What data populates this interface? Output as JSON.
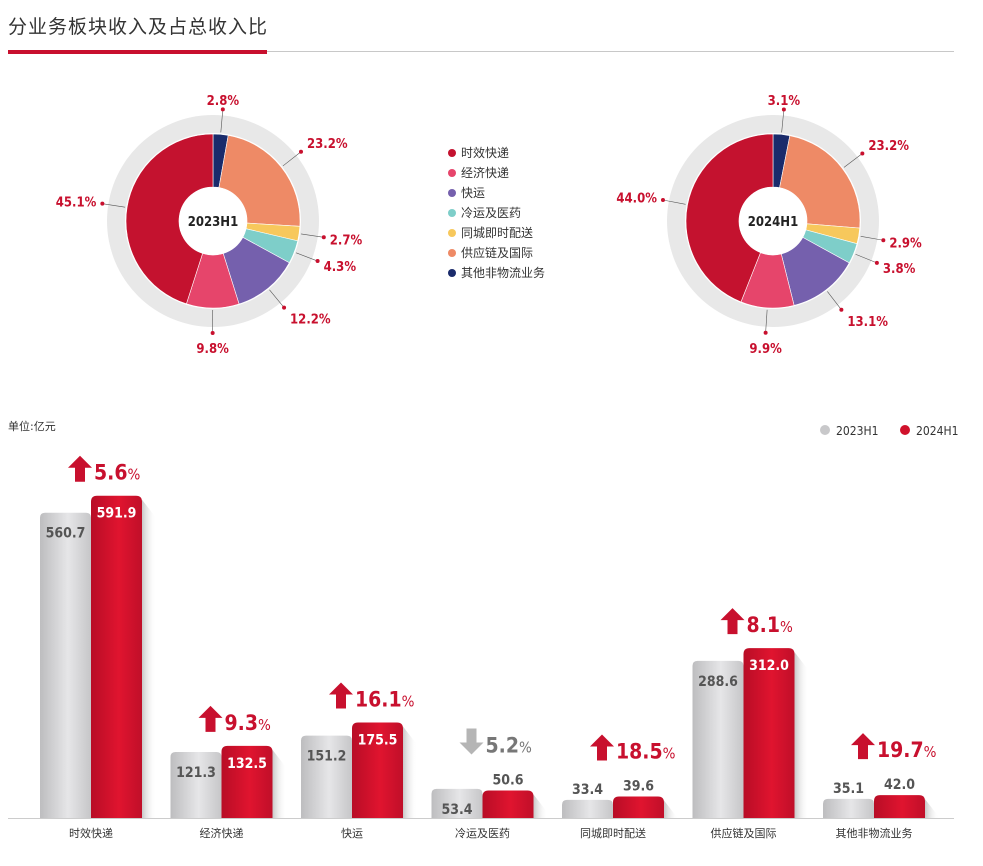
{
  "header": {
    "title": "分业务板块收入及占总收入比"
  },
  "colors": {
    "accent": "#c8102e",
    "ring": "#e6e6e6",
    "bar2023": "#d0d0d2",
    "bar2024": "#d0112b",
    "up": "#c8102e",
    "down": "#b5b5b5",
    "label": "#c8102e"
  },
  "legend": {
    "items": [
      {
        "label": "时效快递",
        "color": "#c4122f"
      },
      {
        "label": "经济快递",
        "color": "#e6456b"
      },
      {
        "label": "快运",
        "color": "#7560ad"
      },
      {
        "label": "冷运及医药",
        "color": "#7ecec9"
      },
      {
        "label": "同城即时配送",
        "color": "#f7c85c"
      },
      {
        "label": "供应链及国际",
        "color": "#ee8a66"
      },
      {
        "label": "其他非物流业务",
        "color": "#1a2b6b"
      }
    ]
  },
  "chart_data": [
    {
      "type": "pie",
      "center_label": "2023H1",
      "labels": [
        "时效快递",
        "经济快递",
        "快运",
        "冷运及医药",
        "同城即时配送",
        "供应链及国际",
        "其他非物流业务"
      ],
      "values": [
        45.1,
        9.8,
        12.2,
        4.3,
        2.7,
        23.2,
        2.8
      ],
      "value_labels": [
        "45.1%",
        "9.8%",
        "12.2%",
        "4.3%",
        "2.7%",
        "23.2%",
        "2.8%"
      ]
    },
    {
      "type": "pie",
      "center_label": "2024H1",
      "labels": [
        "时效快递",
        "经济快递",
        "快运",
        "冷运及医药",
        "同城即时配送",
        "供应链及国际",
        "其他非物流业务"
      ],
      "values": [
        44.0,
        9.9,
        13.1,
        3.8,
        2.9,
        23.2,
        3.1
      ],
      "value_labels": [
        "44.0%",
        "9.9%",
        "13.1%",
        "3.8%",
        "2.9%",
        "23.2%",
        "3.1%"
      ]
    },
    {
      "type": "bar",
      "unit_label": "单位:亿元",
      "categories": [
        "时效快递",
        "经济快递",
        "快运",
        "冷运及医药",
        "同城即时配送",
        "供应链及国际",
        "其他非物流业务"
      ],
      "series": [
        {
          "name": "2023H1",
          "values": [
            560.7,
            121.3,
            151.2,
            53.4,
            33.4,
            288.6,
            35.1
          ],
          "labels": [
            "560.7",
            "121.3",
            "151.2",
            "53.4",
            "33.4",
            "288.6",
            "35.1"
          ]
        },
        {
          "name": "2024H1",
          "values": [
            591.9,
            132.5,
            175.5,
            50.6,
            39.6,
            312.0,
            42.0
          ],
          "labels": [
            "591.9",
            "132.5",
            "175.5",
            "50.6",
            "39.6",
            "312.0",
            "42.0"
          ]
        }
      ],
      "growth": [
        {
          "value": "5.6",
          "unit": "%",
          "direction": "up"
        },
        {
          "value": "9.3",
          "unit": "%",
          "direction": "up"
        },
        {
          "value": "16.1",
          "unit": "%",
          "direction": "up"
        },
        {
          "value": "5.2",
          "unit": "%",
          "direction": "down"
        },
        {
          "value": "18.5",
          "unit": "%",
          "direction": "up"
        },
        {
          "value": "8.1",
          "unit": "%",
          "direction": "up"
        },
        {
          "value": "19.7",
          "unit": "%",
          "direction": "up"
        }
      ]
    }
  ]
}
